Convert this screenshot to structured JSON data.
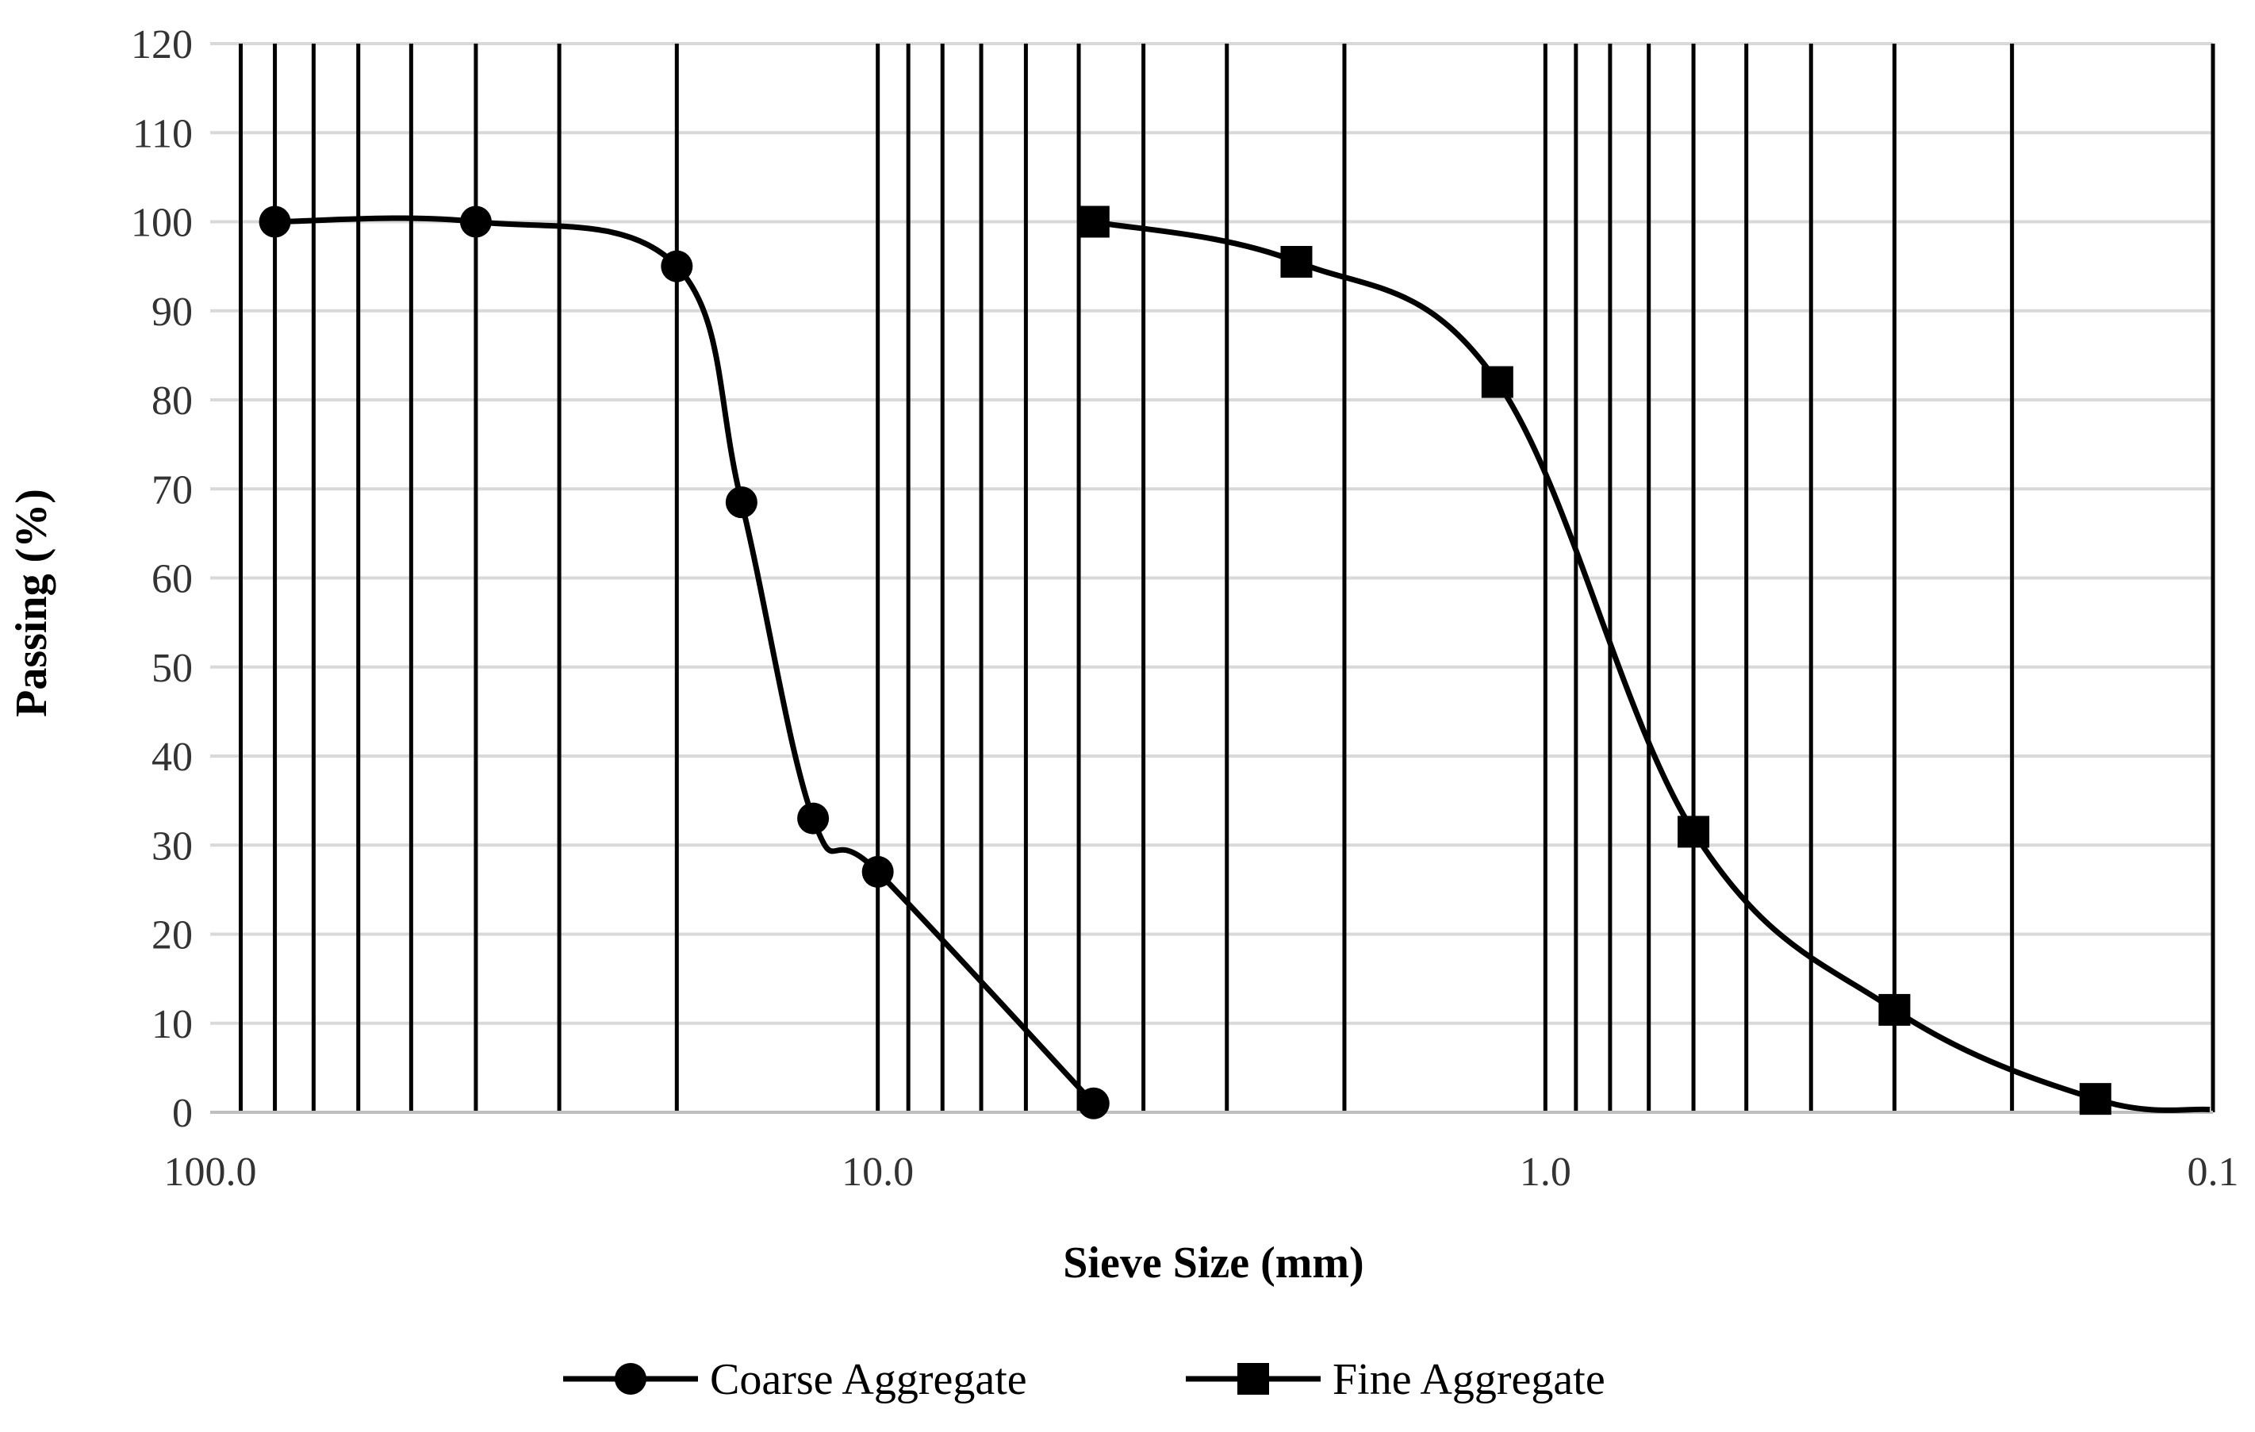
{
  "chart_data": {
    "type": "line",
    "xlabel": "Sieve Size (mm)",
    "ylabel": "Passing (%)",
    "x_scale": "log",
    "x_reversed": true,
    "xlim": [
      100.0,
      0.1
    ],
    "ylim": [
      0,
      120
    ],
    "y_ticks": [
      0,
      10,
      20,
      30,
      40,
      50,
      60,
      70,
      80,
      90,
      100,
      110,
      120
    ],
    "x_ticks": [
      {
        "value": 100.0,
        "label": "100.0"
      },
      {
        "value": 10.0,
        "label": "10.0"
      },
      {
        "value": 1.0,
        "label": "1.0"
      },
      {
        "value": 0.1,
        "label": "0.1"
      }
    ],
    "x_minor_gridlines": [
      90,
      80,
      70,
      60,
      50,
      40,
      30,
      20,
      9,
      8,
      7,
      6,
      5,
      4,
      3,
      2,
      0.9,
      0.8,
      0.7,
      0.6,
      0.5,
      0.4,
      0.3,
      0.2
    ],
    "grid": {
      "horizontal": true,
      "vertical": true
    },
    "legend_position": "bottom",
    "colors": {
      "line": "#000000",
      "hgrid": "#d9d9d9",
      "vgrid": "#000000",
      "tick_text": "#333333"
    },
    "series": [
      {
        "name": "Coarse Aggregate",
        "marker": "circle",
        "x": [
          80.0,
          40.0,
          20.0,
          16.0,
          12.5,
          10.0,
          4.75
        ],
        "y": [
          100,
          100,
          95,
          68.5,
          33,
          27,
          1
        ]
      },
      {
        "name": "Fine Aggregate",
        "marker": "square",
        "x": [
          4.75,
          2.36,
          1.18,
          0.6,
          0.3,
          0.15
        ],
        "y": [
          100,
          95.5,
          82,
          31.5,
          11.5,
          1.5
        ]
      }
    ]
  }
}
